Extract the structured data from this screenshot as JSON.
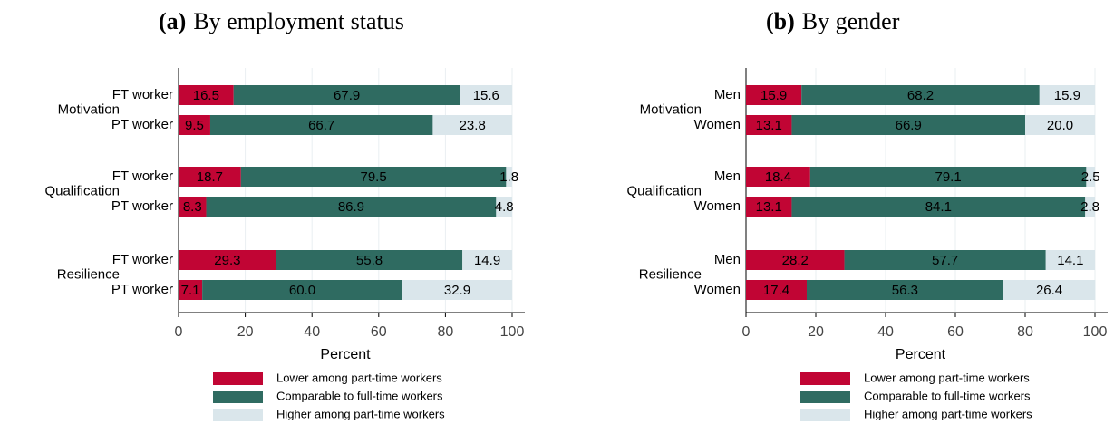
{
  "chart_data": [
    {
      "type": "stacked-barh",
      "panel_label": "(a)",
      "title": "By employment status",
      "groups": [
        "Motivation",
        "Qualification",
        "Resilience"
      ],
      "categories": [
        "FT worker",
        "PT worker",
        "FT worker",
        "PT worker",
        "FT worker",
        "PT worker"
      ],
      "series": [
        {
          "name": "Lower among part-time workers",
          "color": "#c10534",
          "values": [
            16.5,
            9.5,
            18.7,
            8.3,
            29.3,
            7.1
          ],
          "value_labels": [
            "16.5",
            "9.5",
            "18.7",
            "8.3",
            "29.3",
            "7.1"
          ]
        },
        {
          "name": "Comparable to full-time workers",
          "color": "#2f6b61",
          "values": [
            67.9,
            66.7,
            79.5,
            86.9,
            55.8,
            60
          ],
          "value_labels": [
            "67.9",
            "66.7",
            "79.5",
            "86.9",
            "55.8",
            "60.0"
          ]
        },
        {
          "name": "Higher among part-time workers",
          "color": "#dae6eb",
          "values": [
            15.6,
            23.8,
            1.8,
            4.8,
            14.9,
            32.9
          ],
          "value_labels": [
            "15.6",
            "23.8",
            "1.8",
            "4.8",
            "14.9",
            "32.9"
          ]
        }
      ],
      "xlim": [
        0,
        100
      ],
      "xticks": [
        0,
        20,
        40,
        60,
        80,
        100
      ],
      "xlabel": "Percent",
      "grid": true
    },
    {
      "type": "stacked-barh",
      "panel_label": "(b)",
      "title": "By gender",
      "groups": [
        "Motivation",
        "Qualification",
        "Resilience"
      ],
      "categories": [
        "Men",
        "Women",
        "Men",
        "Women",
        "Men",
        "Women"
      ],
      "series": [
        {
          "name": "Lower among part-time workers",
          "color": "#c10534",
          "values": [
            15.9,
            13.1,
            18.4,
            13.1,
            28.2,
            17.4
          ],
          "value_labels": [
            "15.9",
            "13.1",
            "18.4",
            "13.1",
            "28.2",
            "17.4"
          ]
        },
        {
          "name": "Comparable to full-time workers",
          "color": "#2f6b61",
          "values": [
            68.2,
            66.9,
            79.1,
            84.1,
            57.7,
            56.3
          ],
          "value_labels": [
            "68.2",
            "66.9",
            "79.1",
            "84.1",
            "57.7",
            "56.3"
          ]
        },
        {
          "name": "Higher among part-time workers",
          "color": "#dae6eb",
          "values": [
            15.9,
            20,
            2.5,
            2.8,
            14.1,
            26.4
          ],
          "value_labels": [
            "15.9",
            "20.0",
            "2.5",
            "2.8",
            "14.1",
            "26.4"
          ]
        }
      ],
      "xlim": [
        0,
        100
      ],
      "xticks": [
        0,
        20,
        40,
        60,
        80,
        100
      ],
      "xlabel": "Percent",
      "grid": true
    }
  ]
}
